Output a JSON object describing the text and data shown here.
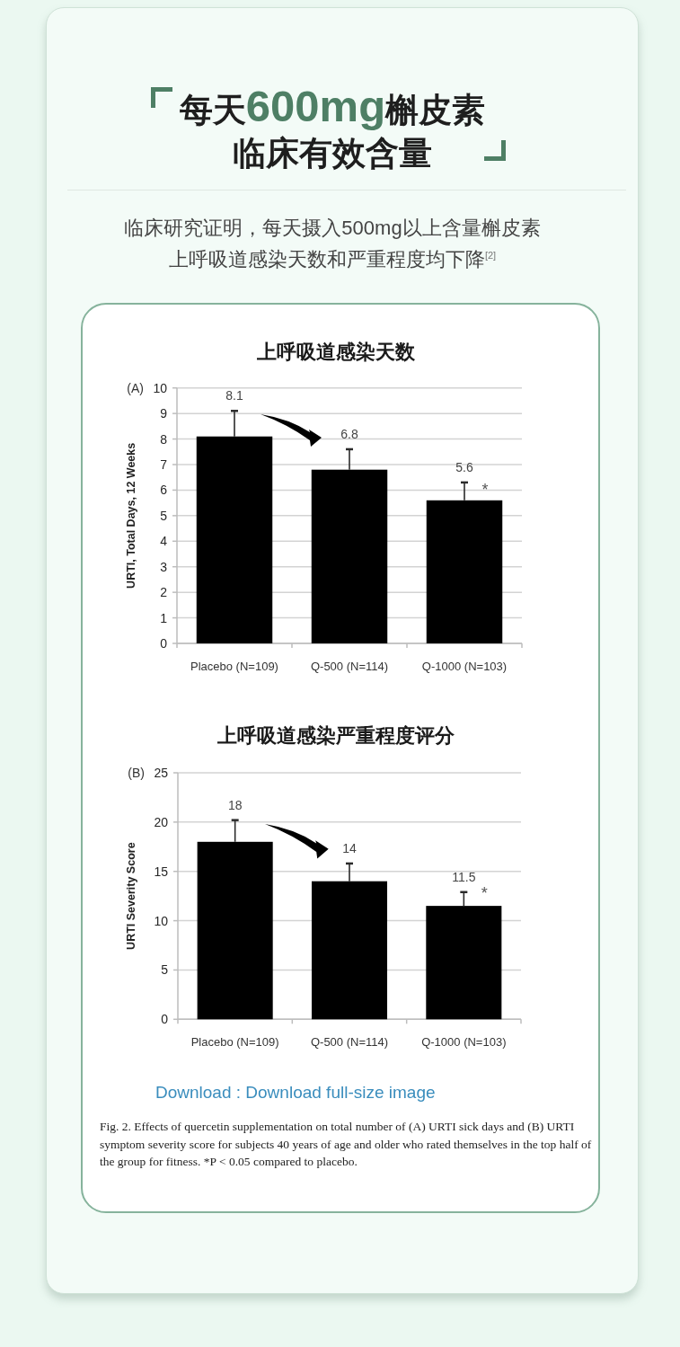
{
  "chart_data": [
    {
      "type": "other",
      "title": "每天600mg槲皮素临床有效含量",
      "subtitle": "临床研究证明，每天摄入500mg以上含量槲皮素上呼吸道感染天数和严重程度均下降$^{[2]}$"
    },
    {
      "type": "bar",
      "title": "上呼吸道感染天数",
      "ylabel": "URTI, Total Days, 12 Weeks",
      "categories": [
        "Placebo (N=109)",
        "Q-500 (N=114)",
        "Q-1000 (N=103)"
      ],
      "values": [
        8.1,
        6.8,
        5.6
      ],
      "color": "#000000",
      "errors": [
        [
          8.1,
          9.1
        ],
        [
          6.8,
          7.6
        ],
        [
          5.6,
          6.3
        ]
      ],
      "data_labels": true,
      "ylim": [
        0,
        10
      ],
      "yticks": [
        0,
        1,
        2,
        3,
        4,
        5,
        6,
        7,
        8,
        9,
        10
      ],
      "grid": "y",
      "annotations": [
        "(A)",
        {
          "text": "*",
          "x": "Q-1000 (N=103)",
          "y": 6.2
        }
      ]
    },
    {
      "type": "bar",
      "title": "上呼吸道感染严重程度评分",
      "ylabel": "URTI Severity Score",
      "categories": [
        "Placebo (N=109)",
        "Q-500 (N=114)",
        "Q-1000 (N=103)"
      ],
      "values": [
        18,
        14,
        11.5
      ],
      "color": "#000000",
      "errors": [
        [
          18,
          20.2
        ],
        [
          14,
          15.8
        ],
        [
          11.5,
          12.9
        ]
      ],
      "data_labels": true,
      "ylim": [
        0,
        25
      ],
      "yticks": [
        0,
        5,
        10,
        15,
        20,
        25
      ],
      "grid": "y",
      "annotations": [
        "(B)",
        {
          "text": "*",
          "x": "Q-1000 (N=103)",
          "y": 13.2
        },
        "Download : Download full-size image",
        "Fig. 2. Effects of quercetin supplementation on total number of (A) URTI sick days and (B) URTI symptom severity score for subjects 40 years of age and older who rated themselves in the top half of the group for fitness. *P < 0.05 compared to placebo."
      ]
    }
  ]
}
